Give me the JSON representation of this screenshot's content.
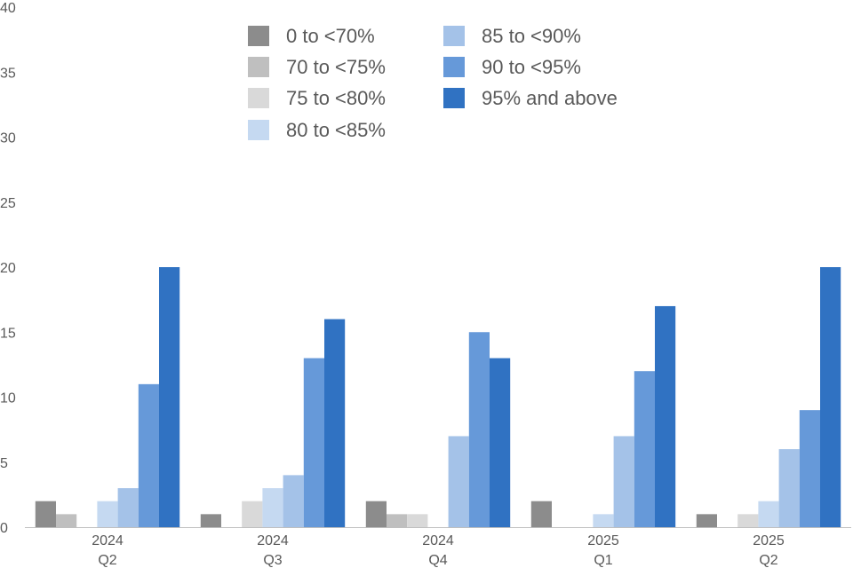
{
  "chart_data": {
    "type": "bar",
    "categories": [
      {
        "year": "2024",
        "quarter": "Q2"
      },
      {
        "year": "2024",
        "quarter": "Q3"
      },
      {
        "year": "2024",
        "quarter": "Q4"
      },
      {
        "year": "2025",
        "quarter": "Q1"
      },
      {
        "year": "2025",
        "quarter": "Q2"
      }
    ],
    "series": [
      {
        "name": "0 to <70%",
        "color": "#8c8c8c",
        "values": [
          2,
          1,
          2,
          2,
          1
        ]
      },
      {
        "name": "70 to <75%",
        "color": "#bfbfbf",
        "values": [
          1,
          0,
          1,
          0,
          0
        ]
      },
      {
        "name": "75 to <80%",
        "color": "#d9d9d9",
        "values": [
          0,
          2,
          1,
          0,
          1
        ]
      },
      {
        "name": "80 to <85%",
        "color": "#c5d9f1",
        "values": [
          2,
          3,
          0,
          1,
          2
        ]
      },
      {
        "name": "85 to <90%",
        "color": "#a4c2e8",
        "values": [
          3,
          4,
          7,
          7,
          6
        ]
      },
      {
        "name": "90 to <95%",
        "color": "#6699d9",
        "values": [
          11,
          13,
          15,
          12,
          9
        ]
      },
      {
        "name": "95% and above",
        "color": "#3072c2",
        "values": [
          20,
          16,
          13,
          17,
          20
        ]
      }
    ],
    "ylim": [
      0,
      40
    ],
    "yticks": [
      0,
      5,
      10,
      15,
      20,
      25,
      30,
      35,
      40
    ],
    "xlabel": "",
    "ylabel": "",
    "title": "",
    "grid": false,
    "legend_position": "top-center"
  }
}
